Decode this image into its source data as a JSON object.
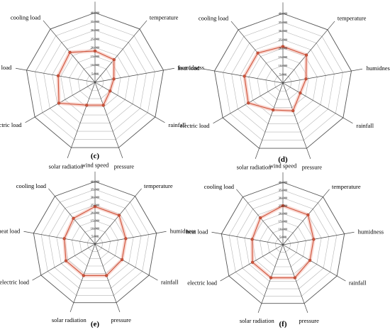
{
  "figure": {
    "background": "#ffffff",
    "grid_color": "#9a9a9a",
    "series_color": "#d0533a",
    "band_color": "#f2b7ac"
  },
  "chart_data": [
    {
      "type": "radar",
      "panel_label": "(c)",
      "axes": [
        "wind speed",
        "temperature",
        "humidness",
        "rainfall",
        "pressure",
        "solar radiation",
        "electric load",
        "heat load",
        "cooling load"
      ],
      "tick_labels": [
        "5,000",
        "10,000",
        "15,000",
        "20,000",
        "25,000",
        "30,000",
        "35,000",
        "40,000"
      ],
      "rlim": [
        0,
        40000
      ],
      "grid": true,
      "values": [
        18000,
        17000,
        11000,
        10000,
        14000,
        14000,
        24000,
        21500,
        22500
      ]
    },
    {
      "type": "radar",
      "panel_label": "(d)",
      "axes": [
        "wind speed",
        "temperature",
        "humidness",
        "rainfall",
        "pressure",
        "solar radiation",
        "electric load",
        "heat load",
        "cooling load"
      ],
      "tick_labels": [
        "5,000",
        "10,000",
        "15,000",
        "20,000",
        "25,000",
        "30,000",
        "35,000",
        "40,000"
      ],
      "rlim": [
        0,
        40000
      ],
      "grid": true,
      "values": [
        21000,
        21000,
        13500,
        11500,
        17000,
        16500,
        23000,
        22500,
        22500
      ]
    },
    {
      "type": "radar",
      "panel_label": "(e)",
      "axes": [
        "wind speed",
        "temperature",
        "humidness",
        "rainfall",
        "pressure",
        "solar radiation",
        "electric load",
        "heat load",
        "cooling load"
      ],
      "tick_labels": [
        "5,000",
        "10,000",
        "15,000",
        "20,000",
        "25,000",
        "30,000",
        "35,000",
        "40,000"
      ],
      "rlim": [
        0,
        40000
      ],
      "grid": true,
      "values": [
        24000,
        24000,
        20000,
        20000,
        21500,
        21500,
        21500,
        20000,
        21500
      ]
    },
    {
      "type": "radar",
      "panel_label": "(f)",
      "axes": [
        "wind speed",
        "temperature",
        "humidness",
        "rainfall",
        "pressure",
        "solar radiation",
        "electric load",
        "heat load",
        "cooling load"
      ],
      "tick_labels": [
        "5,000",
        "10,000",
        "15,000",
        "20,000",
        "25,000",
        "30,000",
        "35,000",
        "40,000"
      ],
      "rlim": [
        0,
        40000
      ],
      "grid": true,
      "values": [
        25000,
        25000,
        20000,
        20000,
        22500,
        22500,
        22500,
        20000,
        22500
      ]
    }
  ]
}
